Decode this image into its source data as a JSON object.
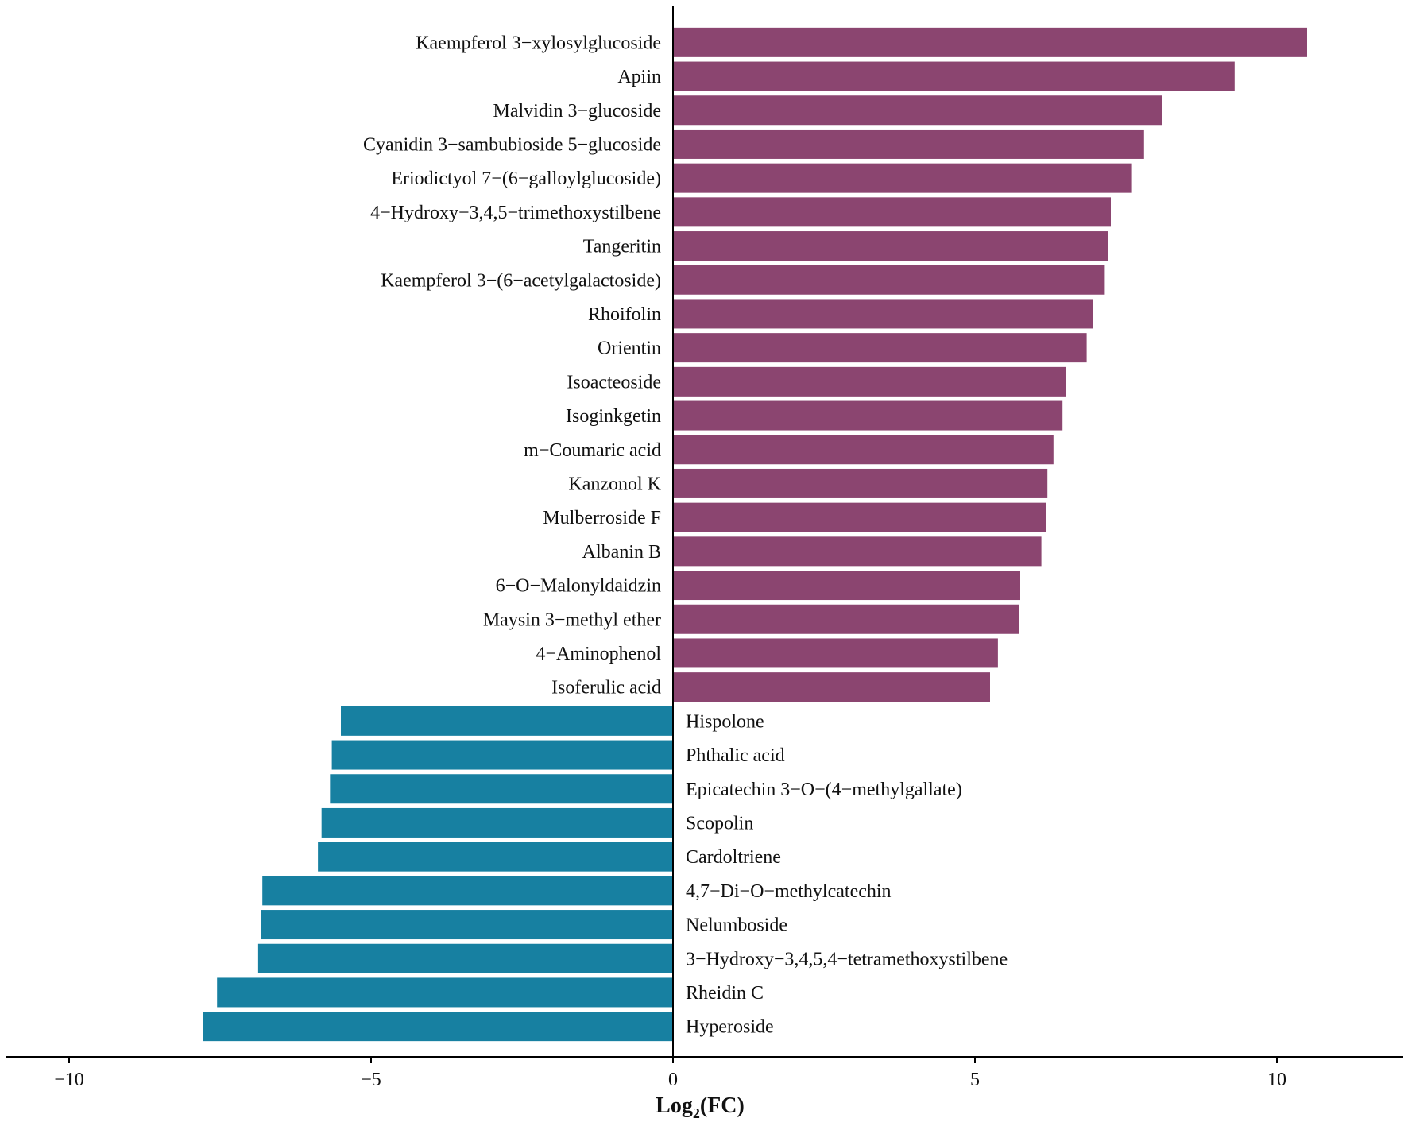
{
  "chart_data": {
    "type": "bar",
    "orientation": "horizontal",
    "xlabel": "Log2(FC)",
    "xlabel_main": "Log",
    "xlabel_sub": "2",
    "xlabel_rest": "(FC)",
    "xlim": [
      -11,
      12
    ],
    "xticks": [
      -10,
      -5,
      0,
      5,
      10
    ],
    "xtick_labels": [
      "−10",
      "−5",
      "0",
      "5",
      "10"
    ],
    "colors": {
      "up": "#8B4570",
      "down": "#1780A1"
    },
    "categories": [
      "Kaempferol 3−xylosylglucoside",
      "Apiin",
      "Malvidin 3−glucoside",
      "Cyanidin 3−sambubioside 5−glucoside",
      "Eriodictyol 7−(6−galloylglucoside)",
      "4−Hydroxy−3,4,5−trimethoxystilbene",
      "Tangeritin",
      "Kaempferol 3−(6−acetylgalactoside)",
      "Rhoifolin",
      "Orientin",
      "Isoacteoside",
      "Isoginkgetin",
      "m−Coumaric acid",
      "Kanzonol K",
      "Mulberroside F",
      "Albanin B",
      "6−O−Malonyldaidzin",
      "Maysin 3−methyl ether",
      "4−Aminophenol",
      "Isoferulic acid",
      "Hispolone",
      "Phthalic acid",
      "Epicatechin 3−O−(4−methylgallate)",
      "Scopolin",
      "Cardoltriene",
      "4,7−Di−O−methylcatechin",
      "Nelumboside",
      "3−Hydroxy−3,4,5,4−tetramethoxystilbene",
      "Rheidin C",
      "Hyperoside"
    ],
    "values": [
      10.5,
      9.3,
      8.1,
      7.8,
      7.6,
      7.25,
      7.2,
      7.15,
      6.95,
      6.85,
      6.5,
      6.45,
      6.3,
      6.2,
      6.18,
      6.1,
      5.75,
      5.73,
      5.38,
      5.25,
      -5.5,
      -5.65,
      -5.68,
      -5.82,
      -5.88,
      -6.8,
      -6.82,
      -6.87,
      -7.55,
      -7.78
    ]
  }
}
